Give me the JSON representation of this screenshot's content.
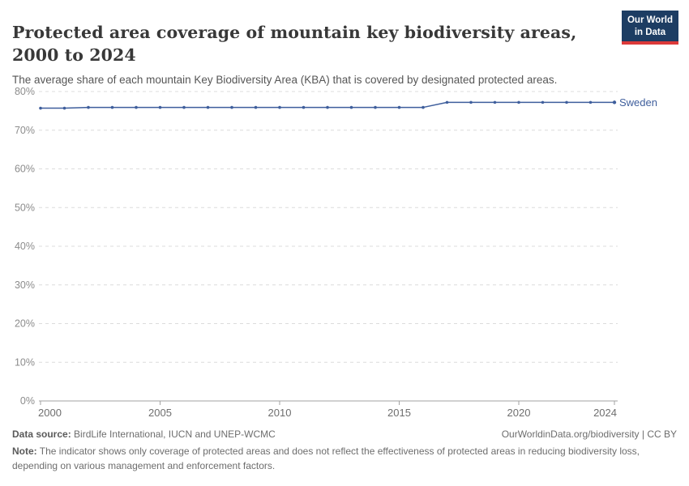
{
  "header": {
    "title": "Protected area coverage of mountain key biodiversity areas, 2000 to 2024",
    "subtitle": "The average share of each mountain Key Biodiversity Area (KBA) that is covered by designated protected areas.",
    "logo": {
      "line1": "Our World",
      "line2": "in Data"
    }
  },
  "chart_data": {
    "type": "line",
    "title": "Protected area coverage of mountain key biodiversity areas, 2000 to 2024",
    "xlabel": "",
    "ylabel": "",
    "x": [
      2000,
      2001,
      2002,
      2003,
      2004,
      2005,
      2006,
      2007,
      2008,
      2009,
      2010,
      2011,
      2012,
      2013,
      2014,
      2015,
      2016,
      2017,
      2018,
      2019,
      2020,
      2021,
      2022,
      2023,
      2024
    ],
    "series": [
      {
        "name": "Sweden",
        "color": "#3e5e9c",
        "values": [
          75.7,
          75.7,
          75.9,
          75.9,
          75.9,
          75.9,
          75.9,
          75.9,
          75.9,
          75.9,
          75.9,
          75.9,
          75.9,
          75.9,
          75.9,
          75.9,
          75.9,
          77.2,
          77.2,
          77.2,
          77.2,
          77.2,
          77.2,
          77.2,
          77.2
        ]
      }
    ],
    "xticks": [
      2000,
      2005,
      2010,
      2015,
      2020,
      2024
    ],
    "yticks": [
      0,
      10,
      20,
      30,
      40,
      50,
      60,
      70,
      80
    ],
    "xlim": [
      2000,
      2024
    ],
    "ylim": [
      0,
      80
    ],
    "y_unit": "%",
    "grid": "horizontal-dashed",
    "legend_position": "end-of-line-label",
    "colors": {
      "gridline": "#dcdcdc",
      "axis": "#a3a3a3",
      "ytick_label": "#8c8c8c",
      "xtick_label": "#6e6e6e"
    }
  },
  "footer": {
    "datasource_label": "Data source:",
    "datasource_value": " BirdLife International, IUCN and UNEP-WCMC",
    "link": "OurWorldinData.org/biodiversity | CC BY",
    "note_label": "Note:",
    "note_value": " The indicator shows only coverage of protected areas and does not reflect the effectiveness of protected areas in reducing biodiversity loss, depending on various management and enforcement factors."
  }
}
